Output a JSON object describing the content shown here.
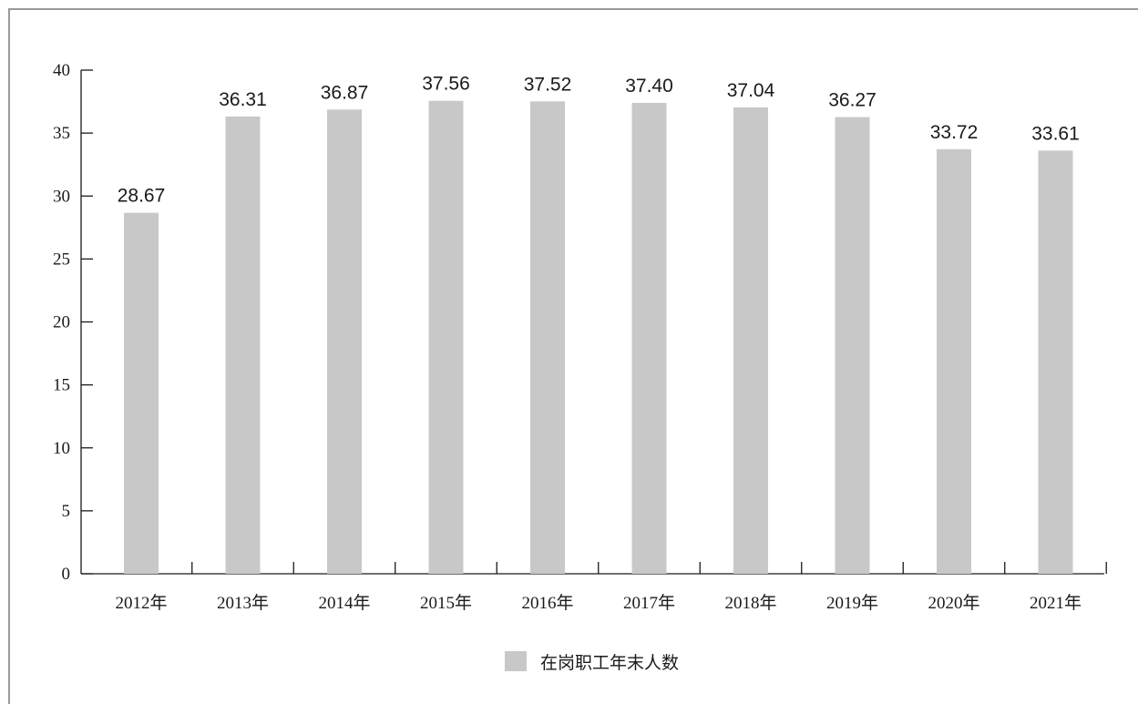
{
  "chart_data": {
    "type": "bar",
    "categories": [
      "2012年",
      "2013年",
      "2014年",
      "2015年",
      "2016年",
      "2017年",
      "2018年",
      "2019年",
      "2020年",
      "2021年"
    ],
    "series": [
      {
        "name": "在岗职工年末人数",
        "values": [
          28.67,
          36.31,
          36.87,
          37.56,
          37.52,
          37.4,
          37.04,
          36.27,
          33.72,
          33.61
        ],
        "labels": [
          "28.67",
          "36.31",
          "36.87",
          "37.56",
          "37.52",
          "37.40",
          "37.04",
          "36.27",
          "33.72",
          "33.61"
        ],
        "color": "#c8c8c8"
      }
    ],
    "ylim": [
      0,
      40
    ],
    "yticks": [
      0,
      5,
      10,
      15,
      20,
      25,
      30,
      35,
      40
    ],
    "grid": false,
    "legend": "bottom-center",
    "axis_color": "#1a1a1a"
  }
}
